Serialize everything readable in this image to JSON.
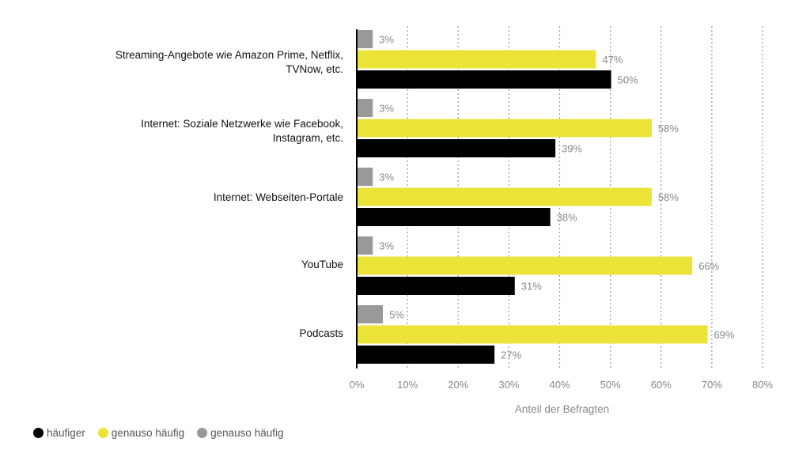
{
  "chart_data": {
    "type": "bar",
    "orientation": "horizontal",
    "categories": [
      "Streaming-Angebote wie Amazon Prime, Netflix, TVNow, etc.",
      "Internet: Soziale Netzwerke wie Facebook, Instagram, etc.",
      "Internet: Webseiten-Portale",
      "YouTube",
      "Podcasts"
    ],
    "series": [
      {
        "name": "genauso häufig",
        "color": "#999999",
        "values": [
          3,
          3,
          3,
          3,
          5
        ]
      },
      {
        "name": "genauso häufig",
        "color": "#ebe337",
        "values": [
          47,
          58,
          58,
          66,
          69
        ]
      },
      {
        "name": "häufiger",
        "color": "#000000",
        "values": [
          50,
          39,
          38,
          31,
          27
        ]
      }
    ],
    "value_labels": [
      [
        "3%",
        "3%",
        "3%",
        "3%",
        "5%"
      ],
      [
        "47%",
        "58%",
        "58%",
        "66%",
        "69%"
      ],
      [
        "50%",
        "39%",
        "38%",
        "31%",
        "27%"
      ]
    ],
    "xlabel": "Anteil der Befragten",
    "xlim": [
      0,
      80
    ],
    "ticks": [
      "0%",
      "10%",
      "20%",
      "30%",
      "40%",
      "50%",
      "60%",
      "70%",
      "80%"
    ],
    "grid": "vertical-dotted",
    "legend_position": "bottom-left"
  },
  "labels": {
    "cat0": [
      "Streaming-Angebote wie Amazon Prime, Netflix,",
      "TVNow, etc."
    ],
    "cat1": [
      "Internet: Soziale Netzwerke wie Facebook,",
      "Instagram, etc."
    ],
    "cat2": [
      "Internet: Webseiten-Portale"
    ],
    "cat3": [
      "YouTube"
    ],
    "cat4": [
      "Podcasts"
    ]
  },
  "legend": [
    {
      "label": "häufiger",
      "color": "#000000"
    },
    {
      "label": "genauso häufig",
      "color": "#ebe337"
    },
    {
      "label": "genauso häufig",
      "color": "#999999"
    }
  ]
}
